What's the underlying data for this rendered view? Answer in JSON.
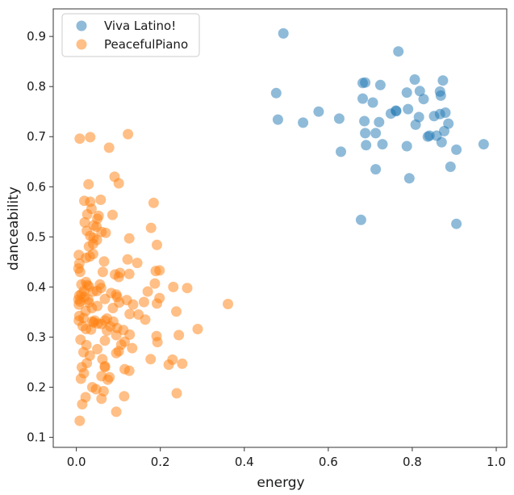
{
  "chart_data": {
    "type": "scatter",
    "xlabel": "energy",
    "ylabel": "danceability",
    "xlim": [
      -0.055,
      1.025
    ],
    "ylim": [
      0.08,
      0.955
    ],
    "xticks": [
      0.0,
      0.2,
      0.4,
      0.6,
      0.8,
      1.0
    ],
    "xtick_labels": [
      "0.0",
      "0.2",
      "0.4",
      "0.6",
      "0.8",
      "1.0"
    ],
    "yticks": [
      0.1,
      0.2,
      0.3,
      0.4,
      0.5,
      0.6,
      0.7,
      0.8,
      0.9
    ],
    "ytick_labels": [
      "0.1",
      "0.2",
      "0.3",
      "0.4",
      "0.5",
      "0.6",
      "0.7",
      "0.8",
      "0.9"
    ],
    "grid": false,
    "legend_position": "top-left",
    "series": [
      {
        "name": "Viva Latino!",
        "color": "#1f77b4",
        "points": [
          [
            0.493,
            0.906
          ],
          [
            0.767,
            0.87
          ],
          [
            0.806,
            0.814
          ],
          [
            0.873,
            0.812
          ],
          [
            0.688,
            0.808
          ],
          [
            0.682,
            0.807
          ],
          [
            0.724,
            0.803
          ],
          [
            0.787,
            0.788
          ],
          [
            0.866,
            0.79
          ],
          [
            0.476,
            0.787
          ],
          [
            0.818,
            0.791
          ],
          [
            0.682,
            0.776
          ],
          [
            0.868,
            0.782
          ],
          [
            0.706,
            0.768
          ],
          [
            0.827,
            0.775
          ],
          [
            0.79,
            0.755
          ],
          [
            0.762,
            0.751
          ],
          [
            0.749,
            0.746
          ],
          [
            0.761,
            0.752
          ],
          [
            0.879,
            0.748
          ],
          [
            0.866,
            0.745
          ],
          [
            0.852,
            0.741
          ],
          [
            0.577,
            0.75
          ],
          [
            0.816,
            0.739
          ],
          [
            0.721,
            0.729
          ],
          [
            0.686,
            0.731
          ],
          [
            0.626,
            0.736
          ],
          [
            0.48,
            0.734
          ],
          [
            0.54,
            0.728
          ],
          [
            0.886,
            0.726
          ],
          [
            0.808,
            0.724
          ],
          [
            0.876,
            0.711
          ],
          [
            0.688,
            0.707
          ],
          [
            0.713,
            0.707
          ],
          [
            0.841,
            0.702
          ],
          [
            0.837,
            0.7
          ],
          [
            0.858,
            0.702
          ],
          [
            0.87,
            0.689
          ],
          [
            0.97,
            0.685
          ],
          [
            0.729,
            0.685
          ],
          [
            0.69,
            0.683
          ],
          [
            0.787,
            0.681
          ],
          [
            0.905,
            0.674
          ],
          [
            0.63,
            0.67
          ],
          [
            0.713,
            0.635
          ],
          [
            0.891,
            0.64
          ],
          [
            0.793,
            0.617
          ],
          [
            0.678,
            0.534
          ],
          [
            0.905,
            0.526
          ]
        ]
      },
      {
        "name": "PeacefulPiano",
        "color": "#ff7f0e",
        "points": [
          [
            0.123,
            0.705
          ],
          [
            0.008,
            0.696
          ],
          [
            0.033,
            0.699
          ],
          [
            0.078,
            0.678
          ],
          [
            0.091,
            0.62
          ],
          [
            0.101,
            0.607
          ],
          [
            0.029,
            0.605
          ],
          [
            0.019,
            0.572
          ],
          [
            0.058,
            0.574
          ],
          [
            0.184,
            0.568
          ],
          [
            0.033,
            0.57
          ],
          [
            0.036,
            0.556
          ],
          [
            0.026,
            0.545
          ],
          [
            0.053,
            0.542
          ],
          [
            0.086,
            0.544
          ],
          [
            0.05,
            0.536
          ],
          [
            0.02,
            0.529
          ],
          [
            0.041,
            0.523
          ],
          [
            0.048,
            0.52
          ],
          [
            0.178,
            0.518
          ],
          [
            0.025,
            0.512
          ],
          [
            0.06,
            0.51
          ],
          [
            0.07,
            0.508
          ],
          [
            0.033,
            0.502
          ],
          [
            0.041,
            0.498
          ],
          [
            0.049,
            0.494
          ],
          [
            0.126,
            0.497
          ],
          [
            0.04,
            0.486
          ],
          [
            0.03,
            0.481
          ],
          [
            0.192,
            0.484
          ],
          [
            0.006,
            0.464
          ],
          [
            0.04,
            0.466
          ],
          [
            0.032,
            0.461
          ],
          [
            0.023,
            0.458
          ],
          [
            0.066,
            0.451
          ],
          [
            0.122,
            0.455
          ],
          [
            0.145,
            0.448
          ],
          [
            0.007,
            0.447
          ],
          [
            0.005,
            0.437
          ],
          [
            0.009,
            0.43
          ],
          [
            0.063,
            0.43
          ],
          [
            0.104,
            0.428
          ],
          [
            0.198,
            0.433
          ],
          [
            0.189,
            0.432
          ],
          [
            0.092,
            0.425
          ],
          [
            0.126,
            0.426
          ],
          [
            0.101,
            0.42
          ],
          [
            0.023,
            0.41
          ],
          [
            0.012,
            0.405
          ],
          [
            0.026,
            0.404
          ],
          [
            0.056,
            0.405
          ],
          [
            0.03,
            0.401
          ],
          [
            0.059,
            0.398
          ],
          [
            0.187,
            0.407
          ],
          [
            0.231,
            0.4
          ],
          [
            0.018,
            0.392
          ],
          [
            0.04,
            0.391
          ],
          [
            0.049,
            0.392
          ],
          [
            0.264,
            0.398
          ],
          [
            0.012,
            0.386
          ],
          [
            0.083,
            0.388
          ],
          [
            0.095,
            0.385
          ],
          [
            0.007,
            0.383
          ],
          [
            0.02,
            0.38
          ],
          [
            0.097,
            0.38
          ],
          [
            0.17,
            0.391
          ],
          [
            0.005,
            0.375
          ],
          [
            0.028,
            0.375
          ],
          [
            0.068,
            0.376
          ],
          [
            0.12,
            0.374
          ],
          [
            0.198,
            0.378
          ],
          [
            0.009,
            0.371
          ],
          [
            0.03,
            0.369
          ],
          [
            0.102,
            0.369
          ],
          [
            0.161,
            0.37
          ],
          [
            0.006,
            0.365
          ],
          [
            0.05,
            0.362
          ],
          [
            0.135,
            0.365
          ],
          [
            0.192,
            0.367
          ],
          [
            0.361,
            0.366
          ],
          [
            0.037,
            0.358
          ],
          [
            0.022,
            0.352
          ],
          [
            0.087,
            0.358
          ],
          [
            0.238,
            0.351
          ],
          [
            0.148,
            0.345
          ],
          [
            0.007,
            0.342
          ],
          [
            0.017,
            0.338
          ],
          [
            0.073,
            0.337
          ],
          [
            0.127,
            0.346
          ],
          [
            0.044,
            0.333
          ],
          [
            0.164,
            0.335
          ],
          [
            0.006,
            0.333
          ],
          [
            0.038,
            0.331
          ],
          [
            0.068,
            0.333
          ],
          [
            0.088,
            0.331
          ],
          [
            0.041,
            0.329
          ],
          [
            0.051,
            0.327
          ],
          [
            0.015,
            0.322
          ],
          [
            0.06,
            0.326
          ],
          [
            0.081,
            0.321
          ],
          [
            0.097,
            0.318
          ],
          [
            0.023,
            0.316
          ],
          [
            0.035,
            0.315
          ],
          [
            0.112,
            0.314
          ],
          [
            0.289,
            0.316
          ],
          [
            0.073,
            0.313
          ],
          [
            0.127,
            0.305
          ],
          [
            0.095,
            0.304
          ],
          [
            0.191,
            0.302
          ],
          [
            0.244,
            0.304
          ],
          [
            0.01,
            0.295
          ],
          [
            0.068,
            0.293
          ],
          [
            0.115,
            0.291
          ],
          [
            0.193,
            0.29
          ],
          [
            0.107,
            0.285
          ],
          [
            0.024,
            0.284
          ],
          [
            0.133,
            0.278
          ],
          [
            0.05,
            0.276
          ],
          [
            0.101,
            0.272
          ],
          [
            0.017,
            0.27
          ],
          [
            0.095,
            0.268
          ],
          [
            0.032,
            0.263
          ],
          [
            0.062,
            0.256
          ],
          [
            0.177,
            0.256
          ],
          [
            0.229,
            0.255
          ],
          [
            0.025,
            0.248
          ],
          [
            0.22,
            0.245
          ],
          [
            0.252,
            0.247
          ],
          [
            0.013,
            0.24
          ],
          [
            0.068,
            0.242
          ],
          [
            0.068,
            0.24
          ],
          [
            0.115,
            0.236
          ],
          [
            0.126,
            0.233
          ],
          [
            0.018,
            0.228
          ],
          [
            0.06,
            0.222
          ],
          [
            0.079,
            0.22
          ],
          [
            0.011,
            0.217
          ],
          [
            0.075,
            0.215
          ],
          [
            0.038,
            0.2
          ],
          [
            0.047,
            0.196
          ],
          [
            0.065,
            0.192
          ],
          [
            0.239,
            0.188
          ],
          [
            0.022,
            0.18
          ],
          [
            0.114,
            0.182
          ],
          [
            0.06,
            0.177
          ],
          [
            0.014,
            0.166
          ],
          [
            0.095,
            0.151
          ],
          [
            0.008,
            0.133
          ]
        ]
      }
    ]
  }
}
